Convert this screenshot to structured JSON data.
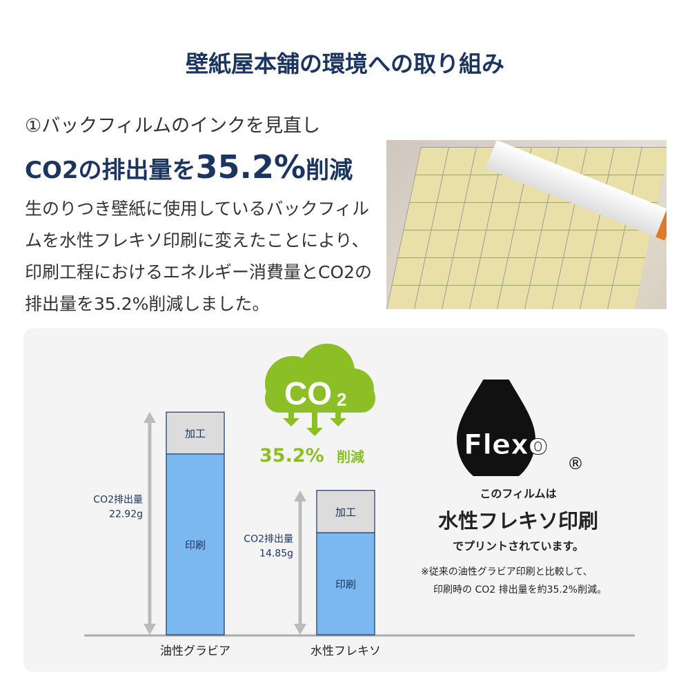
{
  "title": "壁紙屋本舗の環境への取り組み",
  "section": {
    "subtitle": "①バックフィルムのインクを見直し",
    "headline_pre": "CO2の排出量を",
    "headline_num": "35.2%",
    "headline_post": "削減",
    "body": "生のりつき壁紙に使用しているバックフィルムを水性フレキソ印刷に変えたことにより、印刷工程におけるエネルギー消費量とCO2の排出量を35.2%削減しました。"
  },
  "cloud": {
    "label": "CO",
    "sub": "2",
    "reduction": "35.2%",
    "reduction_suffix": "削減"
  },
  "flexo": {
    "logo": "Flexo",
    "reg": "®",
    "line1": "このフィルムは",
    "line2": "水性フレキソ印刷",
    "line3": "でプリントされています。",
    "note1": "※従来の油性グラビア印刷と比較して、",
    "note2": "印刷時の CO2 排出量を約35.2%削減。"
  },
  "colors": {
    "navy": "#1b3560",
    "green": "#8cbf26",
    "print": "#7bb8ef",
    "process": "#dcdcdc"
  },
  "chart_data": {
    "type": "bar",
    "stacked": true,
    "categories": [
      "油性グラビア",
      "水性フレキソ"
    ],
    "series": [
      {
        "name": "印刷",
        "values": [
          18.6,
          10.5
        ]
      },
      {
        "name": "加工",
        "values": [
          4.3,
          4.35
        ]
      }
    ],
    "totals": [
      22.92,
      14.85
    ],
    "total_labels": [
      {
        "line1": "CO2排出量",
        "line2": "22.92g"
      },
      {
        "line1": "CO2排出量",
        "line2": "14.85g"
      }
    ],
    "ylim": [
      0,
      22.92
    ]
  }
}
